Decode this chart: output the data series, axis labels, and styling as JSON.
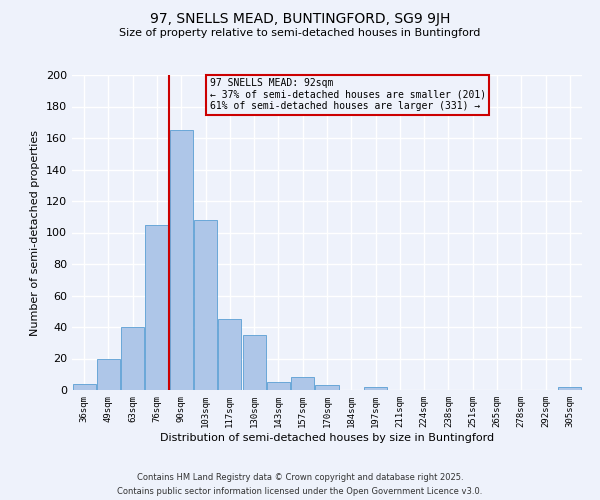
{
  "title": "97, SNELLS MEAD, BUNTINGFORD, SG9 9JH",
  "subtitle": "Size of property relative to semi-detached houses in Buntingford",
  "xlabel": "Distribution of semi-detached houses by size in Buntingford",
  "ylabel": "Number of semi-detached properties",
  "bin_labels": [
    "36sqm",
    "49sqm",
    "63sqm",
    "76sqm",
    "90sqm",
    "103sqm",
    "117sqm",
    "130sqm",
    "143sqm",
    "157sqm",
    "170sqm",
    "184sqm",
    "197sqm",
    "211sqm",
    "224sqm",
    "238sqm",
    "251sqm",
    "265sqm",
    "278sqm",
    "292sqm",
    "305sqm"
  ],
  "bar_values": [
    4,
    20,
    40,
    105,
    165,
    108,
    45,
    35,
    5,
    8,
    3,
    0,
    2,
    0,
    0,
    0,
    0,
    0,
    0,
    0,
    2
  ],
  "bar_color": "#aec6e8",
  "bar_edge_color": "#5a9fd4",
  "property_bin_index": 4,
  "vline_color": "#cc0000",
  "annotation_title": "97 SNELLS MEAD: 92sqm",
  "annotation_line1": "← 37% of semi-detached houses are smaller (201)",
  "annotation_line2": "61% of semi-detached houses are larger (331) →",
  "annotation_box_color": "#cc0000",
  "ylim": [
    0,
    200
  ],
  "yticks": [
    0,
    20,
    40,
    60,
    80,
    100,
    120,
    140,
    160,
    180,
    200
  ],
  "footnote1": "Contains HM Land Registry data © Crown copyright and database right 2025.",
  "footnote2": "Contains public sector information licensed under the Open Government Licence v3.0.",
  "bg_color": "#eef2fb",
  "grid_color": "#ffffff"
}
